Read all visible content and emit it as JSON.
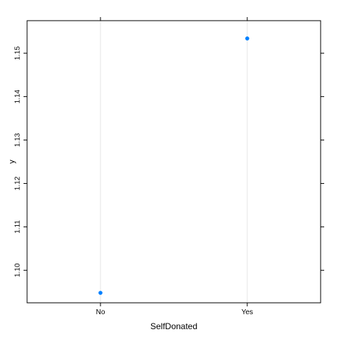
{
  "chart_data": {
    "type": "scatter",
    "title": "",
    "xlabel": "SelfDonated",
    "ylabel": "y",
    "categories": [
      "No",
      "Yes"
    ],
    "series": [
      {
        "values": [
          1.0948,
          1.1534
        ]
      }
    ],
    "ylim": [
      1.0925,
      1.1575
    ],
    "yticks": [
      1.1,
      1.11,
      1.12,
      1.13,
      1.14,
      1.15
    ],
    "ytick_labels": [
      "1.10",
      "1.11",
      "1.12",
      "1.13",
      "1.14",
      "1.15"
    ],
    "grid": "vertical lines at categories",
    "legend": "none",
    "colors": {
      "point": "#0080ff",
      "grid": "#e6e6e6",
      "frame": "#000000"
    }
  }
}
